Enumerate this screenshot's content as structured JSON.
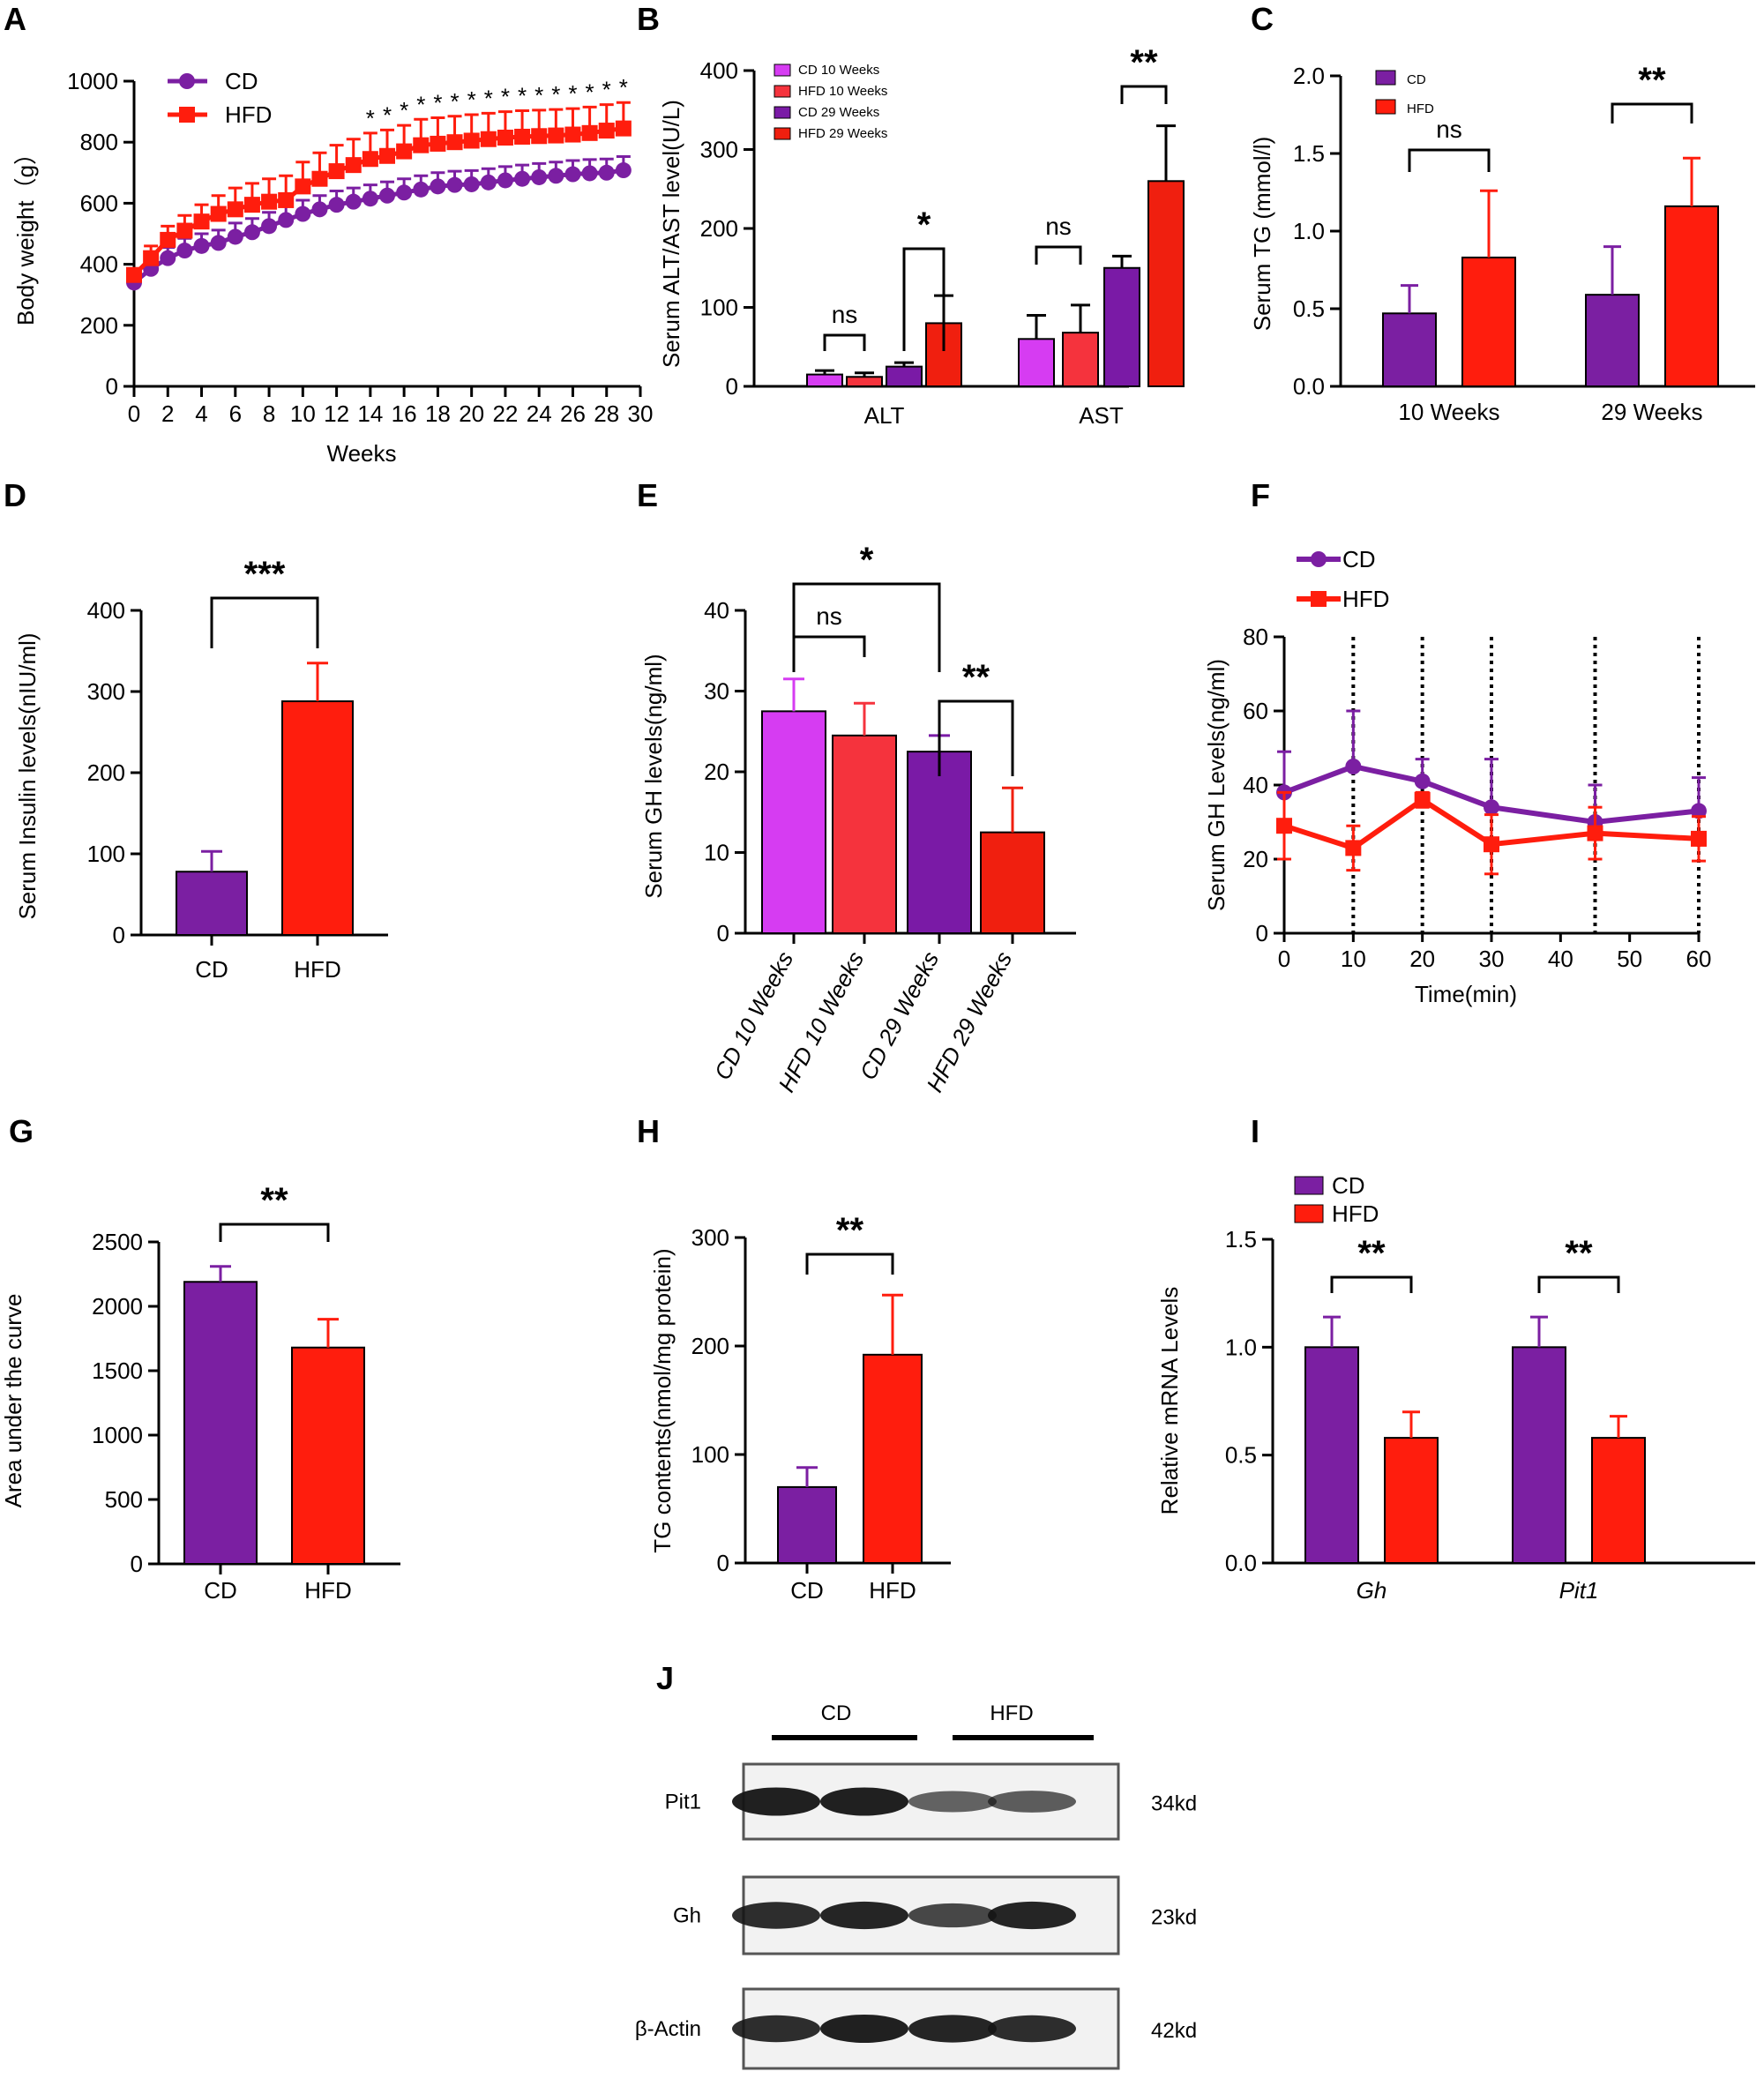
{
  "colors": {
    "cd": "#7b1fa2",
    "hfd": "#ff1d0d",
    "cd10": "#d63cf2",
    "hfd10": "#f5333d",
    "cd29": "#7a1aa6",
    "hfd29": "#f01f0f",
    "dot": "#5e1a8c"
  },
  "panels": {
    "A": {
      "label": "A",
      "title": "Body weight",
      "xlabel": "Weeks",
      "ylabel": "Body weight（g）",
      "chart_data": {
        "type": "line",
        "x": [
          0,
          1,
          2,
          3,
          4,
          5,
          6,
          7,
          8,
          9,
          10,
          11,
          12,
          13,
          14,
          15,
          16,
          17,
          18,
          19,
          20,
          21,
          22,
          23,
          24,
          25,
          26,
          27,
          28,
          29
        ],
        "series": [
          {
            "name": "CD",
            "values": [
              340,
              385,
              420,
              445,
              460,
              470,
              490,
              505,
              525,
              545,
              565,
              580,
              595,
              605,
              615,
              625,
              635,
              645,
              655,
              660,
              662,
              668,
              675,
              680,
              685,
              690,
              695,
              698,
              700,
              708
            ],
            "err": [
              18,
              30,
              35,
              40,
              40,
              42,
              45,
              45,
              45,
              45,
              45,
              45,
              45,
              45,
              45,
              45,
              45,
              45,
              45,
              45,
              45,
              45,
              45,
              45,
              45,
              45,
              45,
              45,
              45,
              45
            ]
          },
          {
            "name": "HFD",
            "values": [
              365,
              420,
              480,
              510,
              540,
              565,
              580,
              595,
              605,
              610,
              655,
              680,
              705,
              725,
              745,
              755,
              770,
              790,
              795,
              800,
              805,
              810,
              815,
              818,
              820,
              822,
              825,
              830,
              838,
              845
            ],
            "err": [
              20,
              40,
              45,
              50,
              55,
              60,
              70,
              70,
              75,
              80,
              80,
              85,
              85,
              85,
              85,
              85,
              85,
              85,
              85,
              85,
              85,
              85,
              85,
              85,
              85,
              85,
              85,
              85,
              85,
              85
            ]
          }
        ],
        "xlim": [
          0,
          30
        ],
        "ylim": [
          0,
          1000
        ],
        "xticks": [
          "0",
          "2",
          "4",
          "6",
          "8",
          "10",
          "12",
          "14",
          "16",
          "18",
          "20",
          "22",
          "24",
          "26",
          "28",
          "30"
        ],
        "yticks": [
          "0",
          "200",
          "400",
          "600",
          "800",
          "1000"
        ],
        "sig_marks": [
          "*",
          "*",
          "*",
          "*",
          "*",
          "*",
          "*",
          "*",
          "*",
          "*",
          "*",
          "*",
          "*",
          "*",
          "*",
          "*"
        ]
      }
    },
    "B": {
      "label": "B",
      "ylabel": "Serum ALT/AST level(U/L)",
      "chart_data": {
        "type": "bar",
        "categories": [
          "ALT",
          "AST"
        ],
        "series": [
          {
            "name": "CD 10 Weeks",
            "values": [
              15,
              60
            ],
            "err": [
              5,
              30
            ]
          },
          {
            "name": "HFD 10 Weeks",
            "values": [
              12,
              68
            ],
            "err": [
              5,
              35
            ]
          },
          {
            "name": "CD 29 Weeks",
            "values": [
              25,
              150
            ],
            "err": [
              5,
              15
            ]
          },
          {
            "name": "HFD 29 Weeks",
            "values": [
              80,
              260
            ],
            "err": [
              35,
              70
            ]
          }
        ],
        "ylim": [
          0,
          400
        ],
        "yticks": [
          "0",
          "100",
          "200",
          "300",
          "400"
        ],
        "comparisons": [
          {
            "label": "ns",
            "group": "ALT"
          },
          {
            "label": "*",
            "group": "ALT"
          },
          {
            "label": "ns",
            "group": "AST"
          },
          {
            "label": "**",
            "group": "AST"
          }
        ]
      }
    },
    "C": {
      "label": "C",
      "ylabel": "Serum TG (mmol/l)",
      "chart_data": {
        "type": "bar",
        "categories": [
          "10 Weeks",
          "29 Weeks"
        ],
        "series": [
          {
            "name": "CD",
            "values": [
              0.47,
              0.59
            ],
            "err": [
              0.18,
              0.31
            ]
          },
          {
            "name": "HFD",
            "values": [
              0.83,
              1.16
            ],
            "err": [
              0.43,
              0.31
            ]
          }
        ],
        "ylim": [
          0,
          2.0
        ],
        "yticks": [
          "0.0",
          "0.5",
          "1.0",
          "1.5",
          "2.0"
        ],
        "comparisons": [
          {
            "label": "ns",
            "group": "10 Weeks"
          },
          {
            "label": "**",
            "group": "29 Weeks"
          }
        ]
      }
    },
    "D": {
      "label": "D",
      "ylabel": "Serum Insulin levels(nIU/ml)",
      "chart_data": {
        "type": "bar",
        "categories": [
          "CD",
          "HFD"
        ],
        "values": [
          78,
          288
        ],
        "err": [
          25,
          47
        ],
        "ylim": [
          0,
          400
        ],
        "yticks": [
          "0",
          "100",
          "200",
          "300",
          "400"
        ],
        "comparisons": [
          {
            "label": "***"
          }
        ]
      }
    },
    "E": {
      "label": "E",
      "ylabel": "Serum GH levels(ng/ml)",
      "chart_data": {
        "type": "bar",
        "categories": [
          "CD 10 Weeks",
          "HFD 10 Weeks",
          "CD 29 Weeks",
          "HFD 29 Weeks"
        ],
        "values": [
          27.5,
          24.5,
          22.5,
          12.5
        ],
        "err": [
          4,
          4,
          2,
          5.5
        ],
        "ylim": [
          0,
          40
        ],
        "yticks": [
          "0",
          "10",
          "20",
          "30",
          "40"
        ],
        "comparisons": [
          {
            "label": "*"
          },
          {
            "label": "ns"
          },
          {
            "label": "**"
          }
        ]
      }
    },
    "F": {
      "label": "F",
      "xlabel": "Time(min)",
      "ylabel": "Serum GH Levels(ng/ml)",
      "chart_data": {
        "type": "line",
        "x": [
          0,
          10,
          20,
          30,
          45,
          60
        ],
        "series": [
          {
            "name": "CD",
            "values": [
              38,
              45,
              41,
              34,
              30,
              33
            ],
            "err": [
              11,
              15,
              6,
              13,
              10,
              9
            ]
          },
          {
            "name": "HFD",
            "values": [
              29,
              23,
              36,
              24,
              27,
              25.5
            ],
            "err": [
              9,
              6,
              2,
              8,
              7,
              6
            ]
          }
        ],
        "xlim": [
          0,
          60
        ],
        "ylim": [
          0,
          80
        ],
        "xticks": [
          "0",
          "10",
          "20",
          "30",
          "40",
          "50",
          "60"
        ],
        "yticks": [
          "0",
          "20",
          "40",
          "60",
          "80"
        ],
        "vlines": [
          10,
          20,
          30,
          45,
          60
        ]
      }
    },
    "G": {
      "label": "G",
      "ylabel": "Area under the curve",
      "chart_data": {
        "type": "bar",
        "categories": [
          "CD",
          "HFD"
        ],
        "values": [
          2190,
          1680
        ],
        "err": [
          120,
          220
        ],
        "ylim": [
          0,
          2500
        ],
        "yticks": [
          "0",
          "500",
          "1000",
          "1500",
          "2000",
          "2500"
        ],
        "comparisons": [
          {
            "label": "**"
          }
        ]
      }
    },
    "H": {
      "label": "H",
      "ylabel": "TG contents(nmol/mg protein)",
      "chart_data": {
        "type": "bar",
        "categories": [
          "CD",
          "HFD"
        ],
        "values": [
          70,
          192
        ],
        "err": [
          18,
          55
        ],
        "ylim": [
          0,
          300
        ],
        "yticks": [
          "0",
          "100",
          "200",
          "300"
        ],
        "comparisons": [
          {
            "label": "**"
          }
        ]
      }
    },
    "I": {
      "label": "I",
      "ylabel": "Relative  mRNA Levels",
      "chart_data": {
        "type": "bar",
        "categories": [
          "Gh",
          "Pit1"
        ],
        "series": [
          {
            "name": "CD",
            "values": [
              1.0,
              1.0
            ],
            "err": [
              0.14,
              0.14
            ]
          },
          {
            "name": "HFD",
            "values": [
              0.58,
              0.58
            ],
            "err": [
              0.12,
              0.1
            ]
          }
        ],
        "ylim": [
          0,
          1.5
        ],
        "yticks": [
          "0.0",
          "0.5",
          "1.0",
          "1.5"
        ],
        "comparisons": [
          {
            "label": "**",
            "group": "Gh"
          },
          {
            "label": "**",
            "group": "Pit1"
          }
        ]
      }
    },
    "J": {
      "label": "J",
      "groups": [
        "CD",
        "HFD"
      ],
      "blots": [
        {
          "name": "Pit1",
          "size": "34kd"
        },
        {
          "name": "Gh",
          "size": "23kd"
        },
        {
          "name": "β-Actin",
          "size": "42kd"
        }
      ]
    }
  }
}
